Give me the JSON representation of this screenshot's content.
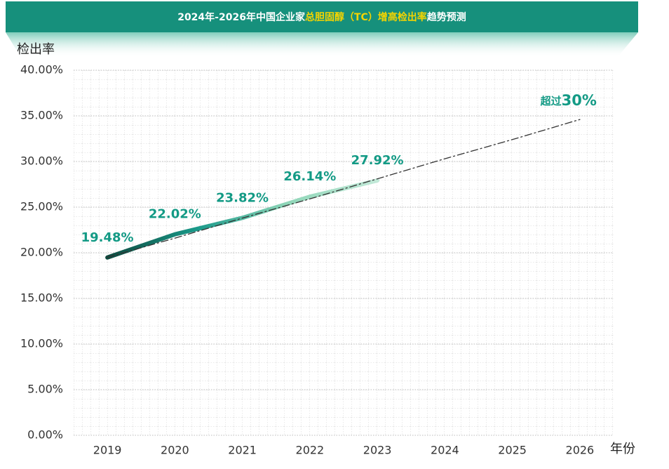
{
  "chart_data": {
    "type": "line",
    "title": [
      "2024年-2026年中国企业家",
      "总胆固醇（TC）增高检出率",
      "趋势预测"
    ],
    "y_axis_label": "检出率",
    "x_axis_label": "年份",
    "categories": [
      "2019",
      "2020",
      "2021",
      "2022",
      "2023",
      "2024",
      "2025",
      "2026"
    ],
    "series": [
      {
        "values": [
          19.48,
          22.02,
          23.82,
          26.14,
          27.92,
          null,
          null,
          null
        ],
        "value_labels": [
          "19.48%",
          "22.02%",
          "23.82%",
          "26.14%",
          "27.92%",
          null,
          null,
          null
        ],
        "color": [
          "#0e4a3f",
          "#1a9a8a",
          "#8fd6b8",
          "#c2e9d8"
        ]
      },
      {
        "values": [
          19.5,
          21.6,
          23.8,
          25.9,
          28.1,
          30.3,
          32.4,
          34.6
        ],
        "color": "#333333",
        "dashed": true
      }
    ],
    "annotation": {
      "text": "超过",
      "emphasis": "30%"
    },
    "ylim": [
      0,
      40
    ],
    "yticks": [
      {
        "value": 0,
        "label": "0.00%"
      },
      {
        "value": 5,
        "label": "5.00%"
      },
      {
        "value": 10,
        "label": "10.00%"
      },
      {
        "value": 15,
        "label": "15.00%"
      },
      {
        "value": 20,
        "label": "20.00%"
      },
      {
        "value": 25,
        "label": "25.00%"
      },
      {
        "value": 30,
        "label": "30.00%"
      },
      {
        "value": 35,
        "label": "35.00%"
      },
      {
        "value": 40,
        "label": "40.00%"
      }
    ],
    "grid": true,
    "label_color": "#139a85"
  }
}
